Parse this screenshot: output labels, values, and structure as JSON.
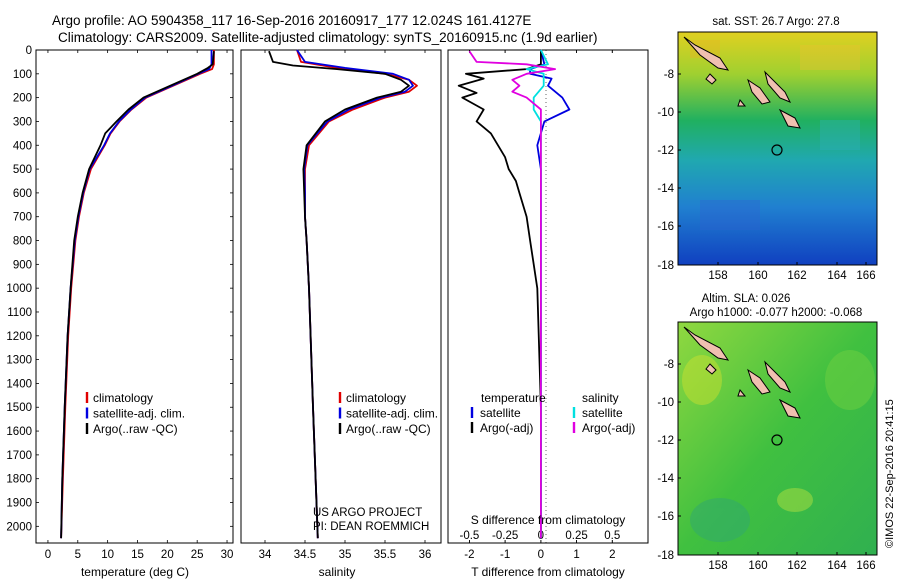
{
  "header": {
    "line1": "Argo profile: AO 5904358_117 16-Sep-2016 20160917_177 12.024S 161.4127E",
    "line2": "Climatology: CARS2009. Satellite-adjusted climatology: synTS_20160915.nc (1.9d earlier)"
  },
  "colors": {
    "climatology": "#e00000",
    "satellite": "#0000e0",
    "argo": "#000000",
    "sat_salinity": "#00e0e0",
    "argo_salinity": "#e000e0"
  },
  "depth_ticks": [
    "0",
    "100",
    "200",
    "300",
    "400",
    "500",
    "600",
    "700",
    "800",
    "900",
    "1000",
    "1100",
    "1200",
    "1300",
    "1400",
    "1500",
    "1600",
    "1700",
    "1800",
    "1900",
    "2000"
  ],
  "chart_data": [
    {
      "type": "line",
      "xlabel": "temperature (deg C)",
      "xlim": [
        -2,
        31
      ],
      "ylim": [
        2070,
        0
      ],
      "xticks": [
        "0",
        "5",
        "10",
        "15",
        "20",
        "25",
        "30"
      ],
      "legend": [
        "climatology",
        "satellite-adj. clim.",
        "Argo(..raw -QC)"
      ],
      "series": [
        {
          "name": "climatology",
          "y": [
            0,
            60,
            80,
            100,
            150,
            200,
            250,
            300,
            350,
            400,
            500,
            600,
            700,
            800,
            1000,
            1200,
            1500,
            1800,
            2050
          ],
          "values": [
            27.8,
            27.8,
            27.5,
            25.5,
            21,
            16.5,
            14,
            12,
            10.5,
            9.5,
            7.2,
            6,
            5.2,
            4.6,
            3.9,
            3.4,
            2.9,
            2.5,
            2.2
          ]
        },
        {
          "name": "satellite-adj. clim.",
          "y": [
            0,
            60,
            80,
            100,
            150,
            200,
            250,
            300,
            350,
            400,
            500,
            600,
            700,
            800,
            1000,
            1200,
            1500,
            1800,
            2050
          ],
          "values": [
            27.4,
            27.4,
            27,
            25.2,
            20.8,
            16.3,
            13.9,
            11.9,
            10.4,
            9.4,
            7,
            5.9,
            5.1,
            4.5,
            3.8,
            3.3,
            2.8,
            2.4,
            2.2
          ]
        },
        {
          "name": "Argo(..raw -QC)",
          "y": [
            5,
            60,
            75,
            100,
            150,
            200,
            250,
            300,
            350,
            400,
            500,
            600,
            700,
            800,
            1000,
            1200,
            1500,
            1800,
            2050
          ],
          "values": [
            27.8,
            27.6,
            26.8,
            25,
            20.5,
            16,
            13.5,
            11.5,
            9.6,
            8.8,
            6.9,
            5.8,
            5,
            4.4,
            3.8,
            3.3,
            2.8,
            2.4,
            2.2
          ]
        }
      ]
    },
    {
      "type": "line",
      "xlabel": "salinity",
      "xlim": [
        33.7,
        36.2
      ],
      "ylim": [
        2070,
        0
      ],
      "xticks": [
        "34",
        "34.5",
        "35",
        "35.5",
        "36"
      ],
      "legend": [
        "climatology",
        "satellite-adj. clim.",
        "Argo(..raw -QC)"
      ],
      "note_lines": [
        "US ARGO PROJECT",
        "PI: DEAN ROEMMICH"
      ],
      "series": [
        {
          "name": "climatology",
          "y": [
            0,
            50,
            75,
            100,
            125,
            150,
            175,
            200,
            250,
            300,
            400,
            500,
            600,
            700,
            800,
            1000,
            1500,
            2050
          ],
          "values": [
            34.4,
            34.45,
            34.9,
            35.5,
            35.8,
            35.9,
            35.8,
            35.5,
            35.1,
            34.8,
            34.55,
            34.5,
            34.5,
            34.5,
            34.52,
            34.55,
            34.6,
            34.66
          ]
        },
        {
          "name": "satellite-adj. clim.",
          "y": [
            0,
            50,
            75,
            100,
            125,
            150,
            175,
            200,
            250,
            300,
            400,
            500,
            600,
            700,
            800,
            1000,
            1500,
            2050
          ],
          "values": [
            34.4,
            34.5,
            35,
            35.6,
            35.8,
            35.85,
            35.75,
            35.45,
            35.05,
            34.78,
            34.53,
            34.49,
            34.5,
            34.5,
            34.52,
            34.55,
            34.6,
            34.66
          ]
        },
        {
          "name": "Argo(..raw -QC)",
          "y": [
            5,
            50,
            65,
            80,
            100,
            125,
            150,
            175,
            200,
            250,
            300,
            400,
            500,
            600,
            700,
            800,
            1000,
            1500,
            2050
          ],
          "values": [
            34.05,
            34.1,
            34.35,
            34.9,
            35.5,
            35.7,
            35.8,
            35.7,
            35.4,
            35,
            34.75,
            34.52,
            34.48,
            34.49,
            34.5,
            34.52,
            34.55,
            34.6,
            34.66
          ]
        }
      ]
    },
    {
      "type": "line",
      "xlabel": "T difference from climatology",
      "xlabel_top": "S difference from climatology",
      "xlim": [
        -2.6,
        3.0
      ],
      "ylim": [
        2070,
        0
      ],
      "xticks_T": [
        "-2",
        "-1",
        "0",
        "1",
        "2"
      ],
      "xticks_S": [
        "-0.5",
        "-0.25",
        "0",
        "0.25",
        "0.5"
      ],
      "legend_headers": [
        "temperature",
        "salinity"
      ],
      "legend": [
        "satellite",
        "Argo(-adj)",
        "satellite",
        "Argo(-adj)"
      ],
      "series": [
        {
          "name": "temperature satellite",
          "y": [
            0,
            60,
            80,
            100,
            120,
            150,
            200,
            250,
            300,
            400,
            500,
            600,
            800,
            1000,
            1500,
            2050
          ],
          "values": [
            0,
            0.1,
            -0.3,
            -0.3,
            0.3,
            0.2,
            0.6,
            0.8,
            0.1,
            -0.1,
            0,
            0,
            0,
            0,
            0,
            0
          ]
        },
        {
          "name": "temperature Argo(-adj)",
          "y": [
            5,
            60,
            80,
            100,
            120,
            150,
            180,
            200,
            250,
            300,
            350,
            400,
            450,
            500,
            550,
            600,
            700,
            800,
            900,
            1000,
            1500,
            2050
          ],
          "values": [
            0,
            0,
            -0.4,
            -2.1,
            -1.6,
            -2.3,
            -1.8,
            -2.2,
            -1.6,
            -1.8,
            -1.4,
            -1.2,
            -1,
            -0.9,
            -0.7,
            -0.6,
            -0.4,
            -0.3,
            -0.2,
            -0.1,
            0,
            0
          ]
        },
        {
          "name": "salinity satellite",
          "y": [
            0,
            60,
            80,
            100,
            150,
            200,
            250,
            300,
            400,
            500,
            800,
            1000,
            1500,
            2050
          ],
          "values": [
            0,
            0.05,
            -0.1,
            0.02,
            0.02,
            -0.05,
            -0.05,
            0,
            0,
            0,
            0,
            0,
            0,
            0
          ]
        },
        {
          "name": "salinity Argo(-adj)",
          "y": [
            5,
            50,
            60,
            80,
            100,
            125,
            150,
            175,
            200,
            250,
            300,
            400,
            500,
            600,
            800,
            1000,
            1200,
            1500,
            2050
          ],
          "values": [
            -0.5,
            -0.45,
            -0.1,
            0.1,
            -0.1,
            -0.2,
            -0.15,
            -0.2,
            -0.1,
            0,
            0,
            0,
            0,
            0,
            0,
            0,
            0,
            0,
            0
          ]
        }
      ]
    }
  ],
  "maps": [
    {
      "title": "sat. SST: 26.7 Argo: 27.8",
      "xticks": [
        "158",
        "160",
        "162",
        "164",
        "166"
      ],
      "yticks": [
        "-8",
        "-10",
        "-12",
        "-14",
        "-16",
        "-18"
      ]
    },
    {
      "title_line1": "Altim. SLA: 0.026",
      "title_line2": "Argo h1000: -0.077 h2000: -0.068",
      "xticks": [
        "158",
        "160",
        "162",
        "164",
        "166"
      ],
      "yticks": [
        "-8",
        "-10",
        "-12",
        "-14",
        "-16",
        "-18"
      ]
    }
  ],
  "credit": "©IMOS 22-Sep-2016 20:41:15"
}
